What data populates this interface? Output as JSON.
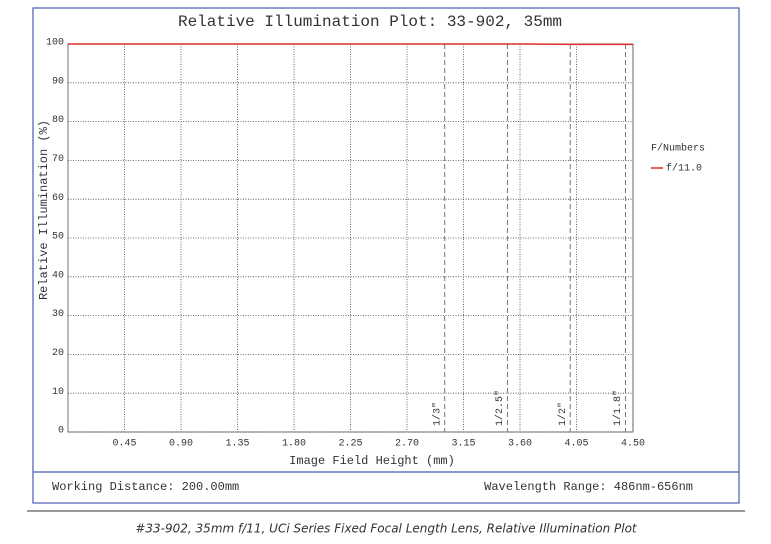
{
  "chart_data": {
    "type": "line",
    "title": "Relative Illumination Plot: 33-902, 35mm",
    "x_label": "Image Field Height (mm)",
    "y_label": "Relative Illumination (%)",
    "x": [
      0,
      0.45,
      0.9,
      1.35,
      1.8,
      2.25,
      2.7,
      3.15,
      3.6,
      4.05,
      4.5
    ],
    "series": [
      {
        "name": "f/11.0",
        "color": "#d9302c",
        "values": [
          100,
          100,
          100,
          100,
          100,
          100,
          100,
          100,
          100,
          99.9,
          99.9
        ]
      }
    ],
    "legend_title": "F/Numbers",
    "xlim": [
      0,
      4.5
    ],
    "xticks": [
      {
        "value": 0.45,
        "label": "0.45"
      },
      {
        "value": 0.9,
        "label": "0.90"
      },
      1.35,
      {
        "value": 1.8,
        "label": "1.80"
      },
      2.25,
      {
        "value": 2.7,
        "label": "2.70"
      },
      3.15,
      {
        "value": 3.6,
        "label": "3.60"
      },
      4.05,
      {
        "value": 4.5,
        "label": "4.50"
      }
    ],
    "ylim": [
      0,
      100
    ],
    "yticks": [
      0,
      10,
      20,
      30,
      40,
      50,
      60,
      70,
      80,
      90,
      100
    ],
    "grid": true,
    "sensor_markers": [
      {
        "label": "1/3\"",
        "x": 3.0
      },
      {
        "label": "1/2.5\"",
        "x": 3.5
      },
      {
        "label": "1/2\"",
        "x": 4.0
      },
      {
        "label": "1/1.8\"",
        "x": 4.44
      }
    ],
    "working_distance": "Working Distance: 200.00mm",
    "wavelength_range": "Wavelength Range: 486nm-656nm",
    "caption": "#33-902, 35mm f/11, UCi Series Fixed Focal Length Lens, Relative Illumination Plot"
  }
}
